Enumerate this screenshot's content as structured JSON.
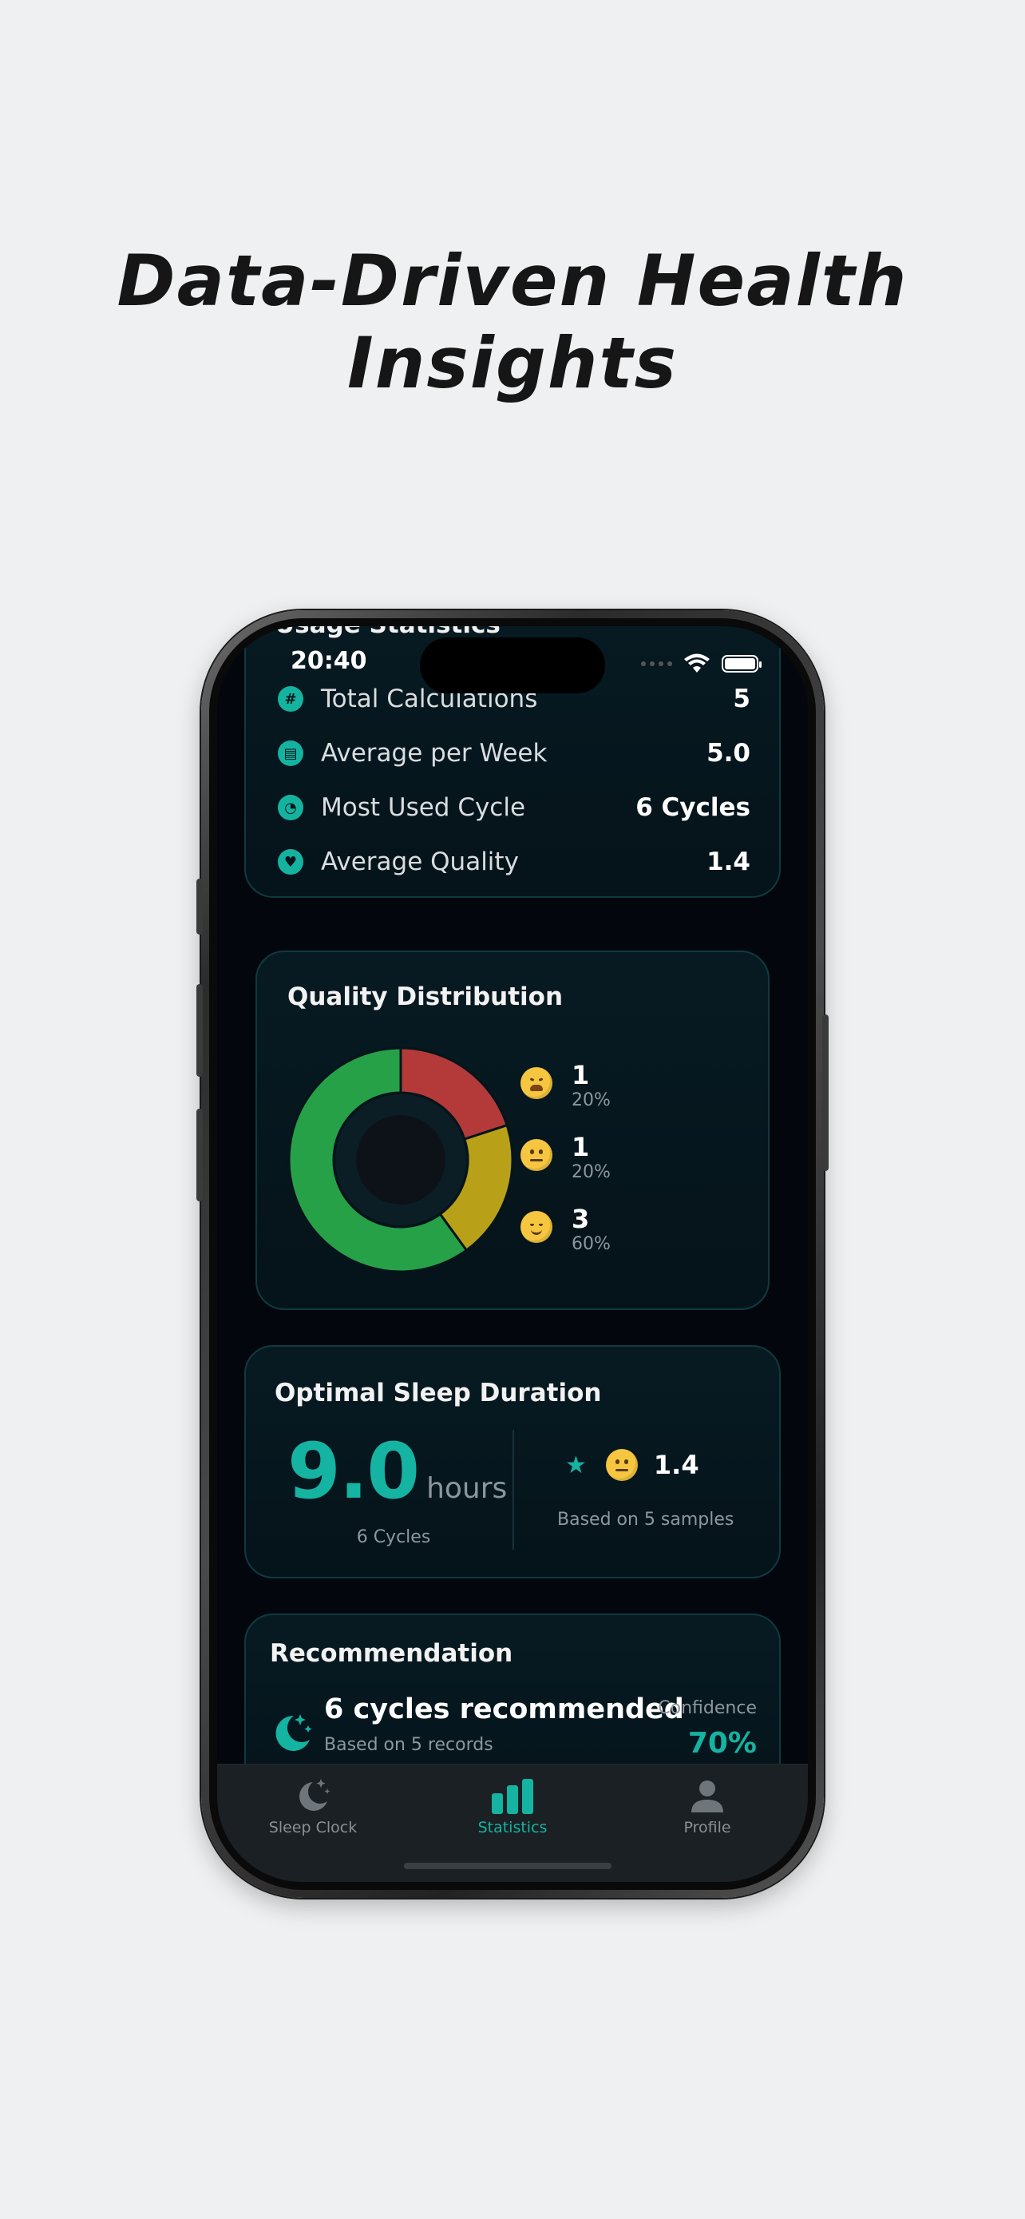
{
  "headline": "Data-Driven Health Insights",
  "status_bar": {
    "time": "20:40"
  },
  "usage": {
    "title": "Usage Statistics",
    "rows": [
      {
        "icon": "hash-icon",
        "glyph": "#",
        "label": "Total Calculations",
        "value": "5"
      },
      {
        "icon": "calendar-icon",
        "glyph": "▤",
        "label": "Average per Week",
        "value": "5.0"
      },
      {
        "icon": "cycle-icon",
        "glyph": "◔",
        "label": "Most Used Cycle",
        "value": "6 Cycles"
      },
      {
        "icon": "heart-icon",
        "glyph": "♥",
        "label": "Average Quality",
        "value": "1.4"
      }
    ]
  },
  "quality": {
    "title": "Quality Distribution",
    "legend": [
      {
        "mood": "tired",
        "count": "1",
        "pct": "20%"
      },
      {
        "mood": "neutral",
        "count": "1",
        "pct": "20%"
      },
      {
        "mood": "calm",
        "count": "3",
        "pct": "60%"
      }
    ]
  },
  "chart_data": {
    "type": "pie",
    "donut": true,
    "categories": [
      "tired",
      "neutral",
      "calm"
    ],
    "values": [
      1,
      1,
      3
    ],
    "percentages": [
      20,
      20,
      60
    ],
    "colors": [
      "#b43a3a",
      "#b8a019",
      "#26a148"
    ]
  },
  "optimal": {
    "title": "Optimal Sleep Duration",
    "hours": "9.0",
    "unit": "hours",
    "cycles": "6 Cycles",
    "score": "1.4",
    "based_on": "Based on 5 samples"
  },
  "recommendation": {
    "title": "Recommendation",
    "main": "6 cycles recommended",
    "sub": "Based on 5 records",
    "confidence_label": "Confidence",
    "confidence_value": "70%"
  },
  "tabbar": {
    "items": [
      {
        "icon": "moon-stars-icon",
        "label": "Sleep Clock",
        "active": false
      },
      {
        "icon": "bar-chart-icon",
        "label": "Statistics",
        "active": true
      },
      {
        "icon": "person-icon",
        "label": "Profile",
        "active": false
      }
    ]
  },
  "colors": {
    "accent": "#15b3a1",
    "background": "#03070d",
    "card_border": "#0f3a3f"
  }
}
